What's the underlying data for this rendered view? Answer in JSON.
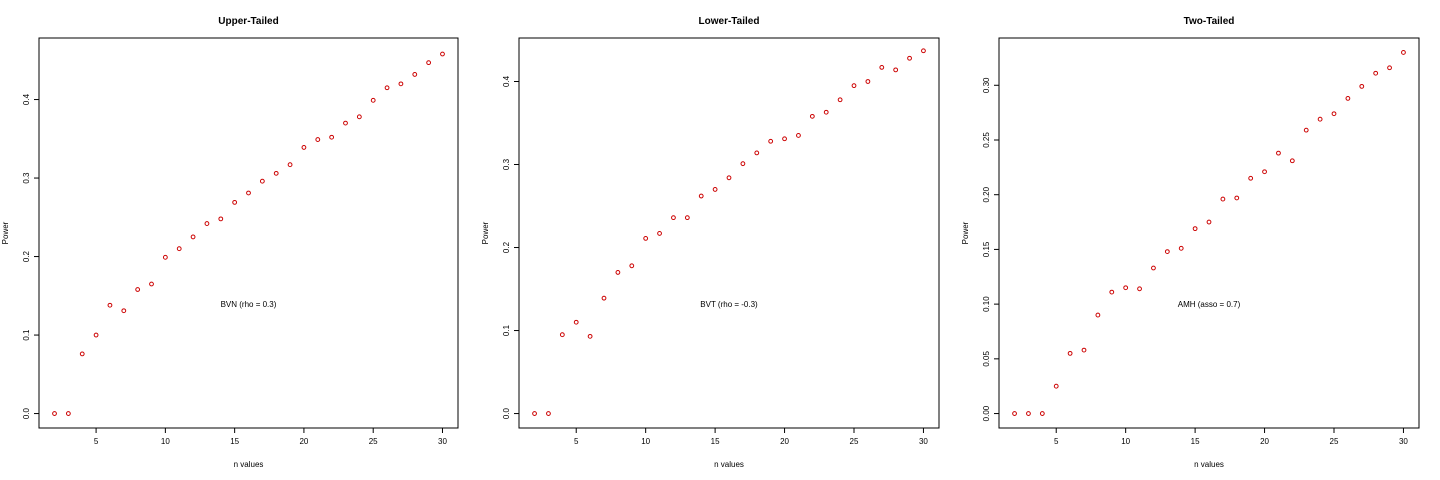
{
  "chart_data": [
    {
      "type": "scatter",
      "title": "Upper-Tailed",
      "xlabel": "n values",
      "ylabel": "Power",
      "annotation": "BVN (rho = 0.3)",
      "xlim": [
        2,
        30
      ],
      "ylim": [
        0.0,
        0.46
      ],
      "x_ticks": [
        5,
        10,
        15,
        20,
        25,
        30
      ],
      "y_ticks": [
        0.0,
        0.1,
        0.2,
        0.3,
        0.4
      ],
      "y_tick_labels": [
        "0.0",
        "0.1",
        "0.2",
        "0.3",
        "0.4"
      ],
      "grid": false,
      "point_color": "#cc0000",
      "series": [
        {
          "x": [
            2,
            3,
            4,
            5,
            6,
            7,
            8,
            9,
            10,
            11,
            12,
            13,
            14,
            15,
            16,
            17,
            18,
            19,
            20,
            21,
            22,
            23,
            24,
            25,
            26,
            27,
            28,
            29,
            30
          ],
          "values": [
            0.0,
            0.0,
            0.076,
            0.1,
            0.138,
            0.131,
            0.158,
            0.165,
            0.199,
            0.21,
            0.225,
            0.242,
            0.248,
            0.269,
            0.281,
            0.296,
            0.306,
            0.317,
            0.339,
            0.349,
            0.352,
            0.37,
            0.378,
            0.399,
            0.415,
            0.42,
            0.432,
            0.447,
            0.458
          ]
        }
      ]
    },
    {
      "type": "scatter",
      "title": "Lower-Tailed",
      "xlabel": "n values",
      "ylabel": "Power",
      "annotation": "BVT (rho = -0.3)",
      "xlim": [
        2,
        30
      ],
      "ylim": [
        0.0,
        0.435
      ],
      "x_ticks": [
        5,
        10,
        15,
        20,
        25,
        30
      ],
      "y_ticks": [
        0.0,
        0.1,
        0.2,
        0.3,
        0.4
      ],
      "y_tick_labels": [
        "0.0",
        "0.1",
        "0.2",
        "0.3",
        "0.4"
      ],
      "grid": false,
      "point_color": "#cc0000",
      "series": [
        {
          "x": [
            2,
            3,
            4,
            5,
            6,
            7,
            8,
            9,
            10,
            11,
            12,
            13,
            14,
            15,
            16,
            17,
            18,
            19,
            20,
            21,
            22,
            23,
            24,
            25,
            26,
            27,
            28,
            29,
            30
          ],
          "values": [
            0.0,
            0.0,
            0.095,
            0.11,
            0.093,
            0.139,
            0.17,
            0.178,
            0.211,
            0.217,
            0.236,
            0.236,
            0.262,
            0.27,
            0.284,
            0.301,
            0.314,
            0.328,
            0.331,
            0.335,
            0.358,
            0.363,
            0.378,
            0.395,
            0.4,
            0.417,
            0.414,
            0.428,
            0.437
          ]
        }
      ]
    },
    {
      "type": "scatter",
      "title": "Two-Tailed",
      "xlabel": "n values",
      "ylabel": "Power",
      "annotation": "AMH (asso = 0.7)",
      "xlim": [
        2,
        30
      ],
      "ylim": [
        0.0,
        0.33
      ],
      "x_ticks": [
        5,
        10,
        15,
        20,
        25,
        30
      ],
      "y_ticks": [
        0.0,
        0.05,
        0.1,
        0.15,
        0.2,
        0.25,
        0.3
      ],
      "y_tick_labels": [
        "0.00",
        "0.05",
        "0.10",
        "0.15",
        "0.20",
        "0.25",
        "0.30"
      ],
      "grid": false,
      "point_color": "#cc0000",
      "series": [
        {
          "x": [
            2,
            3,
            4,
            5,
            6,
            7,
            8,
            9,
            10,
            11,
            12,
            13,
            14,
            15,
            16,
            17,
            18,
            19,
            20,
            21,
            22,
            23,
            24,
            25,
            26,
            27,
            28,
            29,
            30
          ],
          "values": [
            0.0,
            0.0,
            0.0,
            0.025,
            0.055,
            0.058,
            0.09,
            0.111,
            0.115,
            0.114,
            0.133,
            0.148,
            0.151,
            0.169,
            0.175,
            0.196,
            0.197,
            0.215,
            0.221,
            0.238,
            0.231,
            0.259,
            0.269,
            0.274,
            0.288,
            0.299,
            0.311,
            0.316,
            0.33
          ]
        }
      ]
    }
  ]
}
